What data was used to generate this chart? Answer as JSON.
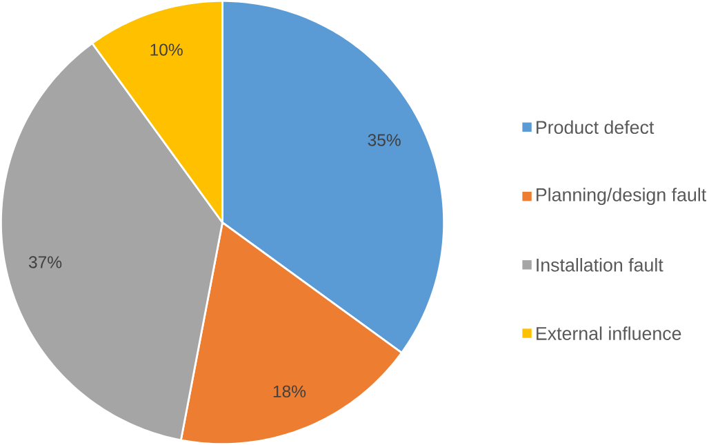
{
  "chart_data": {
    "type": "pie",
    "categories": [
      "Product defect",
      "Planning/design fault",
      "Installation fault",
      "External influence"
    ],
    "values": [
      35,
      18,
      37,
      10
    ],
    "colors": [
      "#5b9bd5",
      "#ed7d31",
      "#a5a5a5",
      "#ffc000"
    ],
    "value_labels": [
      "35%",
      "18%",
      "37%",
      "10%"
    ],
    "legend": "right"
  }
}
